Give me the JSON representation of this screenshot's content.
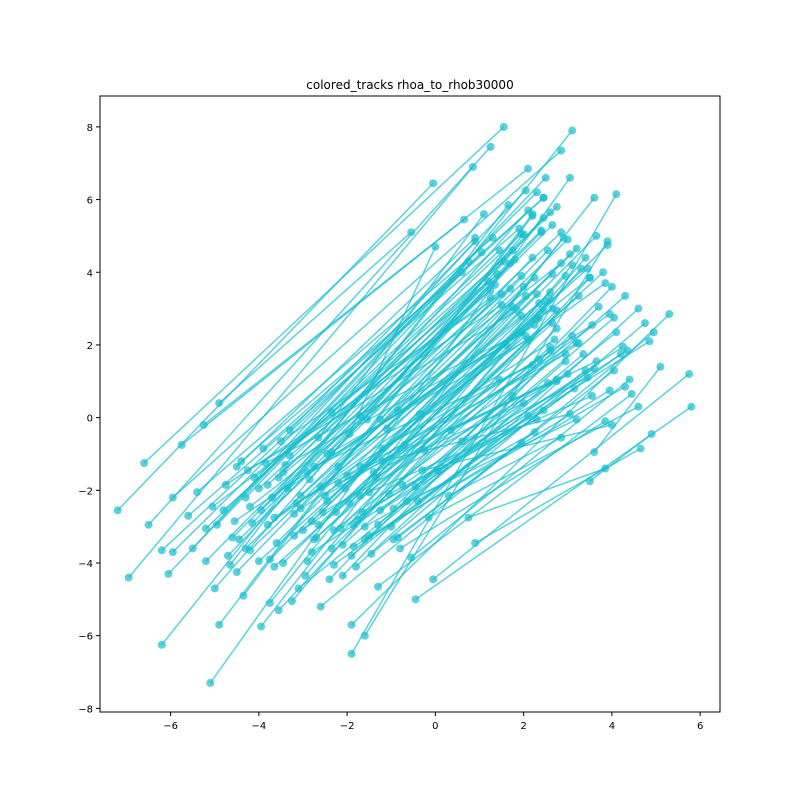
{
  "chart_data": {
    "type": "line",
    "title": "colored_tracks rhoa_to_rhob30000",
    "xlabel": "",
    "ylabel": "",
    "xlim": [
      -7.6,
      6.45
    ],
    "ylim": [
      -8.1,
      8.85
    ],
    "xticks": [
      -6,
      -4,
      -2,
      0,
      2,
      4,
      6
    ],
    "yticks": [
      -8,
      -6,
      -4,
      -2,
      0,
      2,
      4,
      6,
      8
    ],
    "xtick_labels": [
      "−6",
      "−4",
      "−2",
      "0",
      "2",
      "4",
      "6"
    ],
    "ytick_labels": [
      "−8",
      "−6",
      "−4",
      "−2",
      "0",
      "2",
      "4",
      "6",
      "8"
    ],
    "grid": false,
    "color": "#17becf",
    "alpha": 0.7,
    "marker": "circle",
    "tracks": [
      [
        [
          -7.2,
          -2.55
        ],
        [
          -0.05,
          6.45
        ]
      ],
      [
        [
          -6.6,
          -1.25
        ],
        [
          1.55,
          8.0
        ]
      ],
      [
        [
          -6.95,
          -4.4
        ],
        [
          0.85,
          6.9
        ]
      ],
      [
        [
          -6.2,
          -6.25
        ],
        [
          3.1,
          7.9
        ]
      ],
      [
        [
          -5.1,
          -7.3
        ],
        [
          3.05,
          6.6
        ]
      ],
      [
        [
          -6.5,
          -2.95
        ],
        [
          1.25,
          7.45
        ]
      ],
      [
        [
          -5.75,
          -0.75
        ],
        [
          0.65,
          5.45
        ]
      ],
      [
        [
          -4.9,
          0.4
        ],
        [
          -0.55,
          5.1
        ]
      ],
      [
        [
          -5.25,
          -0.2
        ],
        [
          2.1,
          6.85
        ]
      ],
      [
        [
          -6.05,
          -4.3
        ],
        [
          2.5,
          6.6
        ]
      ],
      [
        [
          -5.95,
          -2.2
        ],
        [
          2.85,
          7.35
        ]
      ],
      [
        [
          -4.9,
          -5.7
        ],
        [
          2.2,
          5.6
        ]
      ],
      [
        [
          -3.95,
          -5.75
        ],
        [
          3.6,
          6.05
        ]
      ],
      [
        [
          -1.9,
          -6.5
        ],
        [
          4.1,
          6.15
        ]
      ],
      [
        [
          -1.6,
          -6.0
        ],
        [
          3.9,
          4.85
        ]
      ],
      [
        [
          -1.9,
          -5.7
        ],
        [
          5.3,
          2.85
        ]
      ],
      [
        [
          -0.05,
          -4.45
        ],
        [
          5.75,
          1.2
        ]
      ],
      [
        [
          -0.45,
          -5.0
        ],
        [
          5.8,
          0.3
        ]
      ],
      [
        [
          0.9,
          -3.45
        ],
        [
          4.65,
          -0.85
        ]
      ],
      [
        [
          3.5,
          -1.75
        ],
        [
          4.9,
          -0.45
        ]
      ],
      [
        [
          3.6,
          -0.95
        ],
        [
          5.1,
          1.4
        ]
      ],
      [
        [
          0.75,
          -2.75
        ],
        [
          3.85,
          -1.4
        ]
      ],
      [
        [
          -5.95,
          -3.7
        ],
        [
          2.3,
          6.2
        ]
      ],
      [
        [
          -5.6,
          -2.7
        ],
        [
          1.9,
          5.2
        ]
      ],
      [
        [
          -6.2,
          -3.65
        ],
        [
          2.45,
          6.05
        ]
      ],
      [
        [
          -5.4,
          -2.05
        ],
        [
          1.3,
          4.95
        ]
      ],
      [
        [
          -5.2,
          -3.95
        ],
        [
          2.75,
          5.8
        ]
      ],
      [
        [
          -5.0,
          -4.7
        ],
        [
          2.0,
          5.05
        ]
      ],
      [
        [
          -4.8,
          -2.55
        ],
        [
          1.75,
          4.6
        ]
      ],
      [
        [
          -4.6,
          -3.3
        ],
        [
          2.4,
          5.15
        ]
      ],
      [
        [
          -4.5,
          -4.25
        ],
        [
          2.55,
          4.6
        ]
      ],
      [
        [
          -4.4,
          -1.2
        ],
        [
          0.6,
          4.0
        ]
      ],
      [
        [
          -4.3,
          -3.6
        ],
        [
          3.0,
          4.9
        ]
      ],
      [
        [
          -4.2,
          -2.45
        ],
        [
          2.85,
          4.25
        ]
      ],
      [
        [
          -4.1,
          -1.65
        ],
        [
          1.2,
          3.75
        ]
      ],
      [
        [
          -4.0,
          -3.95
        ],
        [
          3.45,
          4.1
        ]
      ],
      [
        [
          -3.8,
          -2.95
        ],
        [
          3.85,
          3.7
        ]
      ],
      [
        [
          -3.65,
          -4.1
        ],
        [
          3.25,
          3.35
        ]
      ],
      [
        [
          -3.55,
          -5.3
        ],
        [
          3.5,
          3.85
        ]
      ],
      [
        [
          -3.5,
          -0.65
        ],
        [
          1.5,
          3.4
        ]
      ],
      [
        [
          -3.35,
          -1.95
        ],
        [
          2.65,
          3.0
        ]
      ],
      [
        [
          -3.2,
          -3.25
        ],
        [
          3.95,
          2.85
        ]
      ],
      [
        [
          -3.1,
          -4.7
        ],
        [
          4.1,
          2.35
        ]
      ],
      [
        [
          -3.05,
          -2.5
        ],
        [
          3.55,
          2.55
        ]
      ],
      [
        [
          -2.9,
          -1.5
        ],
        [
          2.25,
          2.55
        ]
      ],
      [
        [
          -2.8,
          -3.7
        ],
        [
          4.35,
          1.85
        ]
      ],
      [
        [
          -2.6,
          -5.2
        ],
        [
          4.95,
          2.35
        ]
      ],
      [
        [
          -2.5,
          -2.15
        ],
        [
          3.2,
          2.05
        ]
      ],
      [
        [
          -2.35,
          -0.95
        ],
        [
          2.1,
          2.15
        ]
      ],
      [
        [
          -2.3,
          -4.05
        ],
        [
          4.2,
          1.75
        ]
      ],
      [
        [
          -2.15,
          -3.05
        ],
        [
          3.6,
          1.35
        ]
      ],
      [
        [
          -2.0,
          -1.6
        ],
        [
          2.75,
          1.05
        ]
      ],
      [
        [
          -1.85,
          -3.55
        ],
        [
          3.95,
          0.75
        ]
      ],
      [
        [
          -1.7,
          -2.15
        ],
        [
          3.55,
          0.6
        ]
      ],
      [
        [
          -1.5,
          -3.25
        ],
        [
          4.3,
          0.85
        ]
      ],
      [
        [
          -1.3,
          -4.65
        ],
        [
          4.45,
          0.65
        ]
      ],
      [
        [
          -1.2,
          -1.2
        ],
        [
          3.05,
          0.1
        ]
      ],
      [
        [
          -0.8,
          -3.6
        ],
        [
          3.85,
          -0.1
        ]
      ],
      [
        [
          -0.65,
          -2.3
        ],
        [
          3.2,
          -0.05
        ]
      ],
      [
        [
          -0.3,
          -1.45
        ],
        [
          4.0,
          -0.2
        ]
      ],
      [
        [
          -0.15,
          -2.75
        ],
        [
          4.6,
          0.3
        ]
      ],
      [
        [
          0.3,
          -2.15
        ],
        [
          2.85,
          -0.55
        ]
      ],
      [
        [
          -3.9,
          -0.85
        ],
        [
          2.45,
          6.05
        ]
      ],
      [
        [
          -3.7,
          -2.2
        ],
        [
          2.1,
          5.7
        ]
      ],
      [
        [
          -3.45,
          -1.5
        ],
        [
          2.6,
          5.65
        ]
      ],
      [
        [
          -3.3,
          -0.35
        ],
        [
          2.05,
          6.25
        ]
      ],
      [
        [
          -3.0,
          -3.1
        ],
        [
          3.65,
          5.0
        ]
      ],
      [
        [
          -2.85,
          -1.7
        ],
        [
          2.45,
          5.5
        ]
      ],
      [
        [
          -2.65,
          -0.55
        ],
        [
          1.1,
          5.6
        ]
      ],
      [
        [
          -2.45,
          -1.0
        ],
        [
          2.85,
          5.1
        ]
      ],
      [
        [
          -2.25,
          -2.6
        ],
        [
          3.9,
          4.75
        ]
      ],
      [
        [
          -2.05,
          -1.95
        ],
        [
          3.05,
          4.5
        ]
      ],
      [
        [
          -1.95,
          -0.45
        ],
        [
          0.0,
          4.7
        ]
      ],
      [
        [
          -1.75,
          -2.8
        ],
        [
          3.3,
          4.1
        ]
      ],
      [
        [
          -1.55,
          -0.05
        ],
        [
          1.8,
          4.35
        ]
      ],
      [
        [
          -1.35,
          -1.65
        ],
        [
          2.95,
          3.9
        ]
      ],
      [
        [
          -1.1,
          -0.3
        ],
        [
          2.25,
          3.85
        ]
      ],
      [
        [
          -0.95,
          -2.5
        ],
        [
          3.7,
          3.05
        ]
      ],
      [
        [
          -0.7,
          -0.75
        ],
        [
          2.6,
          3.25
        ]
      ],
      [
        [
          -0.45,
          -1.9
        ],
        [
          4.05,
          2.75
        ]
      ],
      [
        [
          -0.25,
          -0.9
        ],
        [
          3.25,
          2.05
        ]
      ],
      [
        [
          0.05,
          -1.45
        ],
        [
          4.25,
          1.95
        ]
      ],
      [
        [
          0.35,
          -0.35
        ],
        [
          3.65,
          1.55
        ]
      ],
      [
        [
          0.6,
          -0.65
        ],
        [
          3.45,
          1.1
        ]
      ],
      [
        [
          -4.65,
          -4.05
        ],
        [
          1.65,
          5.85
        ]
      ],
      [
        [
          -4.35,
          -4.9
        ],
        [
          2.2,
          5.55
        ]
      ],
      [
        [
          -4.15,
          -2.9
        ],
        [
          2.65,
          5.3
        ]
      ],
      [
        [
          -3.75,
          -5.1
        ],
        [
          2.9,
          4.95
        ]
      ],
      [
        [
          -3.6,
          -3.45
        ],
        [
          3.2,
          4.65
        ]
      ],
      [
        [
          -3.25,
          -5.05
        ],
        [
          3.4,
          4.4
        ]
      ],
      [
        [
          -2.95,
          -4.35
        ],
        [
          3.1,
          4.2
        ]
      ],
      [
        [
          -2.7,
          -3.3
        ],
        [
          3.8,
          4.0
        ]
      ],
      [
        [
          -2.4,
          -4.45
        ],
        [
          4.0,
          3.6
        ]
      ],
      [
        [
          -2.1,
          -3.5
        ],
        [
          4.3,
          3.35
        ]
      ],
      [
        [
          -1.8,
          -4.1
        ],
        [
          4.6,
          3.0
        ]
      ],
      [
        [
          -1.45,
          -3.75
        ],
        [
          4.75,
          2.6
        ]
      ],
      [
        [
          -1.25,
          -2.55
        ],
        [
          4.85,
          2.1
        ]
      ],
      [
        [
          -0.85,
          -3.3
        ],
        [
          4.05,
          1.3
        ]
      ],
      [
        [
          -0.55,
          -3.85
        ],
        [
          4.4,
          1.05
        ]
      ],
      [
        [
          -5.05,
          -2.45
        ],
        [
          1.25,
          3.3
        ]
      ],
      [
        [
          -4.75,
          -1.85
        ],
        [
          1.5,
          3.1
        ]
      ],
      [
        [
          -4.55,
          -2.85
        ],
        [
          2.35,
          2.75
        ]
      ],
      [
        [
          -4.25,
          -1.45
        ],
        [
          1.85,
          2.95
        ]
      ],
      [
        [
          -3.85,
          -1.25
        ],
        [
          1.95,
          2.35
        ]
      ],
      [
        [
          -3.65,
          -2.75
        ],
        [
          2.7,
          2.15
        ]
      ],
      [
        [
          -3.4,
          -1.3
        ],
        [
          1.6,
          2.0
        ]
      ],
      [
        [
          -3.15,
          -2.35
        ],
        [
          2.95,
          1.75
        ]
      ],
      [
        [
          -2.75,
          -1.35
        ],
        [
          2.2,
          1.45
        ]
      ],
      [
        [
          -2.55,
          -2.6
        ],
        [
          3.0,
          1.2
        ]
      ],
      [
        [
          -2.2,
          -1.8
        ],
        [
          2.55,
          0.95
        ]
      ],
      [
        [
          -1.65,
          -2.6
        ],
        [
          2.45,
          0.2
        ]
      ],
      [
        [
          -1.4,
          -1.5
        ],
        [
          2.0,
          0.4
        ]
      ],
      [
        [
          -1.05,
          -2.1
        ],
        [
          2.3,
          -0.05
        ]
      ],
      [
        [
          -5.5,
          -3.6
        ],
        [
          0.9,
          4.85
        ]
      ],
      [
        [
          -5.2,
          -3.05
        ],
        [
          1.45,
          4.6
        ]
      ],
      [
        [
          -4.95,
          -2.95
        ],
        [
          0.75,
          4.3
        ]
      ],
      [
        [
          -4.7,
          -3.8
        ],
        [
          1.7,
          4.25
        ]
      ],
      [
        [
          -4.45,
          -3.35
        ],
        [
          1.95,
          3.9
        ]
      ],
      [
        [
          -4.2,
          -3.65
        ],
        [
          2.0,
          3.6
        ]
      ],
      [
        [
          -3.95,
          -2.55
        ],
        [
          1.35,
          3.65
        ]
      ],
      [
        [
          -3.75,
          -3.9
        ],
        [
          2.3,
          3.4
        ]
      ],
      [
        [
          -3.45,
          -4.0
        ],
        [
          2.5,
          3.2
        ]
      ],
      [
        [
          -3.2,
          -2.65
        ],
        [
          1.75,
          3.05
        ]
      ],
      [
        [
          -2.9,
          -3.95
        ],
        [
          2.75,
          2.95
        ]
      ],
      [
        [
          -2.65,
          -2.95
        ],
        [
          2.3,
          2.7
        ]
      ],
      [
        [
          -2.35,
          -3.6
        ],
        [
          2.75,
          2.45
        ]
      ],
      [
        [
          -2.1,
          -4.35
        ],
        [
          3.1,
          2.25
        ]
      ],
      [
        [
          -1.85,
          -2.95
        ],
        [
          2.6,
          1.95
        ]
      ],
      [
        [
          -1.6,
          -3.35
        ],
        [
          3.35,
          1.75
        ]
      ],
      [
        [
          -1.3,
          -2.95
        ],
        [
          2.95,
          1.55
        ]
      ],
      [
        [
          -1.0,
          -3.0
        ],
        [
          3.4,
          1.3
        ]
      ],
      [
        [
          -0.75,
          -1.85
        ],
        [
          2.75,
          1.0
        ]
      ],
      [
        [
          -0.4,
          -2.3
        ],
        [
          3.15,
          0.8
        ]
      ],
      [
        [
          -4.5,
          -1.35
        ],
        [
          0.9,
          4.95
        ]
      ],
      [
        [
          -4.3,
          -2.2
        ],
        [
          1.05,
          4.55
        ]
      ],
      [
        [
          -4.0,
          -1.95
        ],
        [
          1.55,
          4.3
        ]
      ],
      [
        [
          -3.8,
          -1.85
        ],
        [
          1.4,
          3.95
        ]
      ],
      [
        [
          -3.55,
          -1.65
        ],
        [
          1.7,
          3.55
        ]
      ],
      [
        [
          -3.3,
          -1.05
        ],
        [
          1.25,
          3.5
        ]
      ],
      [
        [
          -3.05,
          -2.15
        ],
        [
          2.05,
          3.35
        ]
      ],
      [
        [
          -2.8,
          -2.85
        ],
        [
          2.6,
          3.45
        ]
      ],
      [
        [
          -2.6,
          -1.9
        ],
        [
          2.35,
          3.15
        ]
      ],
      [
        [
          -2.45,
          -2.3
        ],
        [
          2.45,
          2.95
        ]
      ],
      [
        [
          -2.2,
          -1.35
        ],
        [
          1.95,
          2.8
        ]
      ],
      [
        [
          -1.95,
          -2.35
        ],
        [
          2.65,
          2.6
        ]
      ],
      [
        [
          -1.7,
          -1.35
        ],
        [
          2.05,
          2.25
        ]
      ],
      [
        [
          -1.5,
          -2.05
        ],
        [
          2.6,
          1.85
        ]
      ],
      [
        [
          -1.2,
          -0.85
        ],
        [
          2.35,
          1.6
        ]
      ],
      [
        [
          -2.75,
          -3.35
        ],
        [
          1.45,
          1.05
        ]
      ],
      [
        [
          -2.3,
          -3.1
        ],
        [
          1.75,
          0.6
        ]
      ],
      [
        [
          -1.9,
          -3.8
        ],
        [
          2.1,
          0.05
        ]
      ],
      [
        [
          -1.6,
          -3.0
        ],
        [
          2.25,
          -0.4
        ]
      ],
      [
        [
          -0.95,
          -3.35
        ],
        [
          1.95,
          -0.7
        ]
      ],
      [
        [
          -2.35,
          0.15
        ],
        [
          1.95,
          5.05
        ]
      ],
      [
        [
          -1.7,
          0.05
        ],
        [
          2.4,
          5.1
        ]
      ],
      [
        [
          -1.25,
          -0.05
        ],
        [
          2.2,
          4.4
        ]
      ],
      [
        [
          -0.85,
          0.2
        ],
        [
          2.65,
          3.95
        ]
      ],
      [
        [
          -0.35,
          0.1
        ],
        [
          3.5,
          3.85
        ]
      ]
    ]
  }
}
